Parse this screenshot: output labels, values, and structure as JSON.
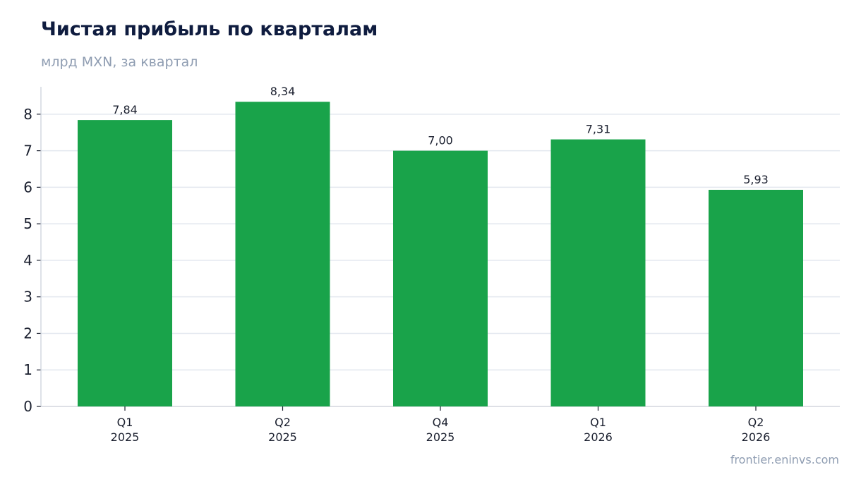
{
  "title": "Чистая прибыль по кварталам",
  "subtitle": "млрд MXN, за квартал",
  "source": "frontier.eninvs.com",
  "colors": {
    "bar": "#19a34a",
    "grid": "#e3e8ef",
    "axis": "#c9ced8",
    "title": "#0f1c3f",
    "muted": "#8f9db2"
  },
  "chart_data": {
    "type": "bar",
    "categories": [
      [
        "Q1",
        "2025"
      ],
      [
        "Q2",
        "2025"
      ],
      [
        "Q4",
        "2025"
      ],
      [
        "Q1",
        "2026"
      ],
      [
        "Q2",
        "2026"
      ]
    ],
    "values": [
      7.84,
      8.34,
      7.0,
      7.31,
      5.93
    ],
    "value_labels": [
      "7,84",
      "8,34",
      "7,00",
      "7,31",
      "5,93"
    ],
    "ylim": [
      0,
      8.75
    ],
    "yticks": [
      0,
      1,
      2,
      3,
      4,
      5,
      6,
      7,
      8
    ],
    "grid": true,
    "legend": "none"
  }
}
